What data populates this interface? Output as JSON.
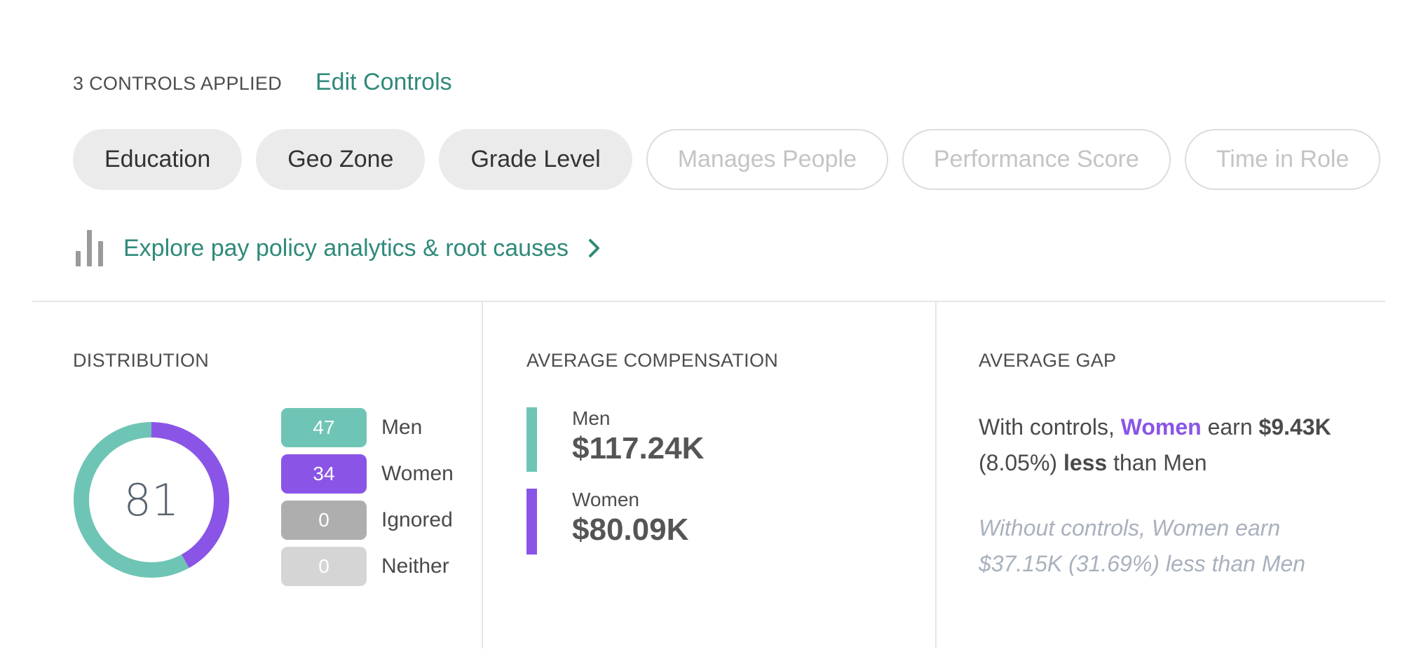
{
  "controls": {
    "count_label": "3 CONTROLS APPLIED",
    "edit_label": "Edit Controls",
    "chips": [
      {
        "label": "Education",
        "active": true
      },
      {
        "label": "Geo Zone",
        "active": true
      },
      {
        "label": "Grade Level",
        "active": true
      },
      {
        "label": "Manages People",
        "active": false
      },
      {
        "label": "Performance Score",
        "active": false
      },
      {
        "label": "Time in Role",
        "active": false
      }
    ]
  },
  "explore": {
    "label": "Explore pay policy analytics & root causes",
    "icon": "bar-chart-icon"
  },
  "distribution": {
    "title": "DISTRIBUTION",
    "total": "81",
    "legend": [
      {
        "value": "47",
        "label": "Men",
        "color": "#6fc5b5"
      },
      {
        "value": "34",
        "label": "Women",
        "color": "#8a55e6"
      },
      {
        "value": "0",
        "label": "Ignored",
        "color": "#aeaeae"
      },
      {
        "value": "0",
        "label": "Neither",
        "color": "#d5d5d5"
      }
    ],
    "donut": {
      "segments": [
        {
          "name": "Women",
          "value": 34,
          "color": "#8a55e6"
        },
        {
          "name": "Men",
          "value": 47,
          "color": "#6fc5b5"
        }
      ]
    }
  },
  "compensation": {
    "title": "AVERAGE COMPENSATION",
    "men_label": "Men",
    "men_value": "$117.24K",
    "men_color": "#6fc5b5",
    "women_label": "Women",
    "women_value": "$80.09K",
    "women_color": "#8a55e6"
  },
  "gap": {
    "title": "AVERAGE GAP",
    "with_prefix": "With controls,",
    "with_women": "Women",
    "with_earn": "earn",
    "with_amount": "$9.43K",
    "with_pct": "(8.05%)",
    "with_less": "less",
    "with_suffix": "than Men",
    "without_line1": "Without controls, Women earn",
    "without_line2": "$37.15K (31.69%) less than Men"
  },
  "colors": {
    "accent": "#2f8a7a",
    "men": "#6fc5b5",
    "women": "#8a55e6"
  }
}
